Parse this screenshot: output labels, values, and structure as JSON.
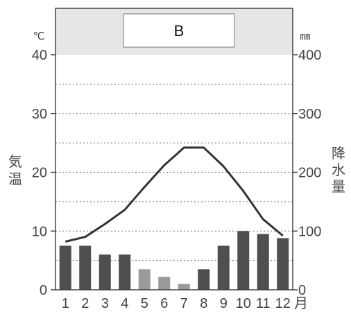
{
  "chart_data": {
    "type": "bar+line",
    "title": "B",
    "categories": [
      "1",
      "2",
      "3",
      "4",
      "5",
      "6",
      "7",
      "8",
      "9",
      "10",
      "11",
      "12"
    ],
    "x_suffix": "月",
    "temperature": {
      "label": "気温",
      "unit": "℃",
      "ylim": [
        0,
        40
      ],
      "ticks": [
        0,
        10,
        20,
        30,
        40
      ],
      "values": [
        8.2,
        9.0,
        11.2,
        13.6,
        17.5,
        21.2,
        24.2,
        24.2,
        21.0,
        16.8,
        12.0,
        9.2
      ],
      "color": "#333333"
    },
    "precipitation": {
      "label": "降水量",
      "unit": "㎜",
      "ylim": [
        0,
        400
      ],
      "ticks": [
        0,
        100,
        200,
        300,
        400
      ],
      "values": [
        75,
        75,
        60,
        60,
        35,
        22,
        10,
        35,
        75,
        100,
        95,
        88
      ],
      "colors": {
        "wet": "#4f4f4f",
        "dry": "#9a9a9a"
      },
      "dry_months": [
        5,
        6,
        7
      ]
    },
    "grid": "dashed",
    "header_band_color": "#e6e6e6"
  }
}
